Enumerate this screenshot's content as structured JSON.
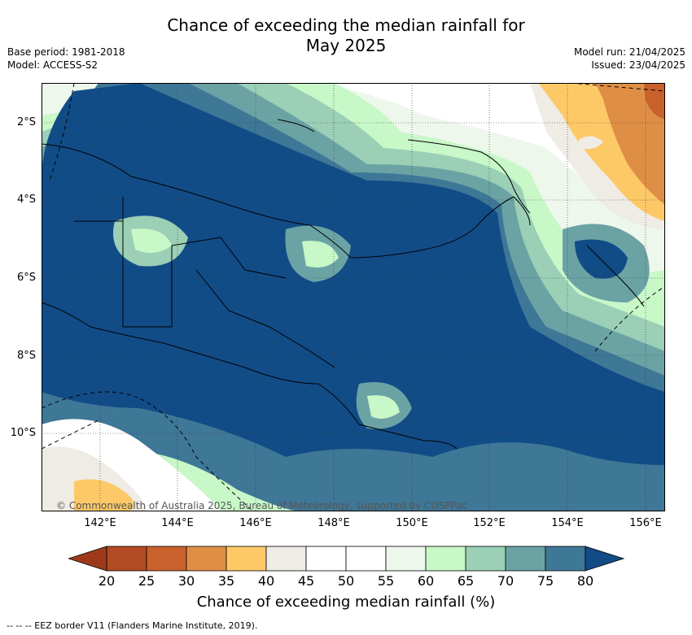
{
  "title_line1": "Chance of exceeding the median rainfall for",
  "title_line2": "May 2025",
  "base_period": "Base period: 1981-2018",
  "model": "Model: ACCESS-S2",
  "model_run": "Model run: 21/04/2025",
  "issued": "Issued: 23/04/2025",
  "lat_ticks": [
    "2°S",
    "4°S",
    "6°S",
    "8°S",
    "10°S"
  ],
  "lon_ticks": [
    "142°E",
    "144°E",
    "146°E",
    "148°E",
    "150°E",
    "152°E",
    "154°E",
    "156°E"
  ],
  "copyright": "© Commonwealth of Australia 2025, Bureau of Meteorology, supported by COSPPac",
  "colorbar": {
    "labels": [
      "20",
      "25",
      "30",
      "35",
      "40",
      "45",
      "50",
      "55",
      "60",
      "65",
      "70",
      "75",
      "80"
    ],
    "colors": [
      "#9e3a1b",
      "#b24a22",
      "#c8612c",
      "#df8f45",
      "#fdc967",
      "#efebe5",
      "#ffffff",
      "#ffffff",
      "#eef7ec",
      "#c8f7c8",
      "#9bcfb6",
      "#6ba3a5",
      "#3f7797",
      "#124c87"
    ],
    "title": "Chance of exceeding median rainfall (%)"
  },
  "legend_note": "-- --  -- EEZ border V11 (Flanders Marine Institute, 2019)."
}
